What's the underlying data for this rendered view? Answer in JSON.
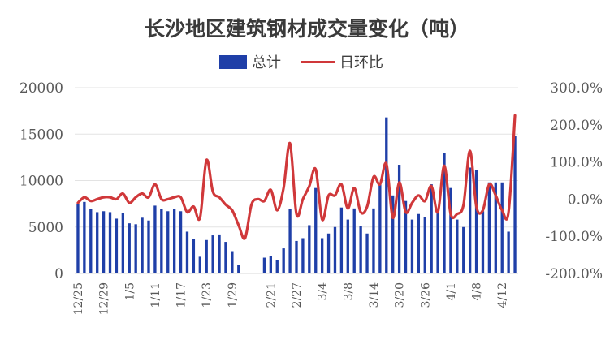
{
  "chart_data": {
    "type": "bar+line",
    "title": "长沙地区建筑钢材成交量变化（吨）",
    "legend": {
      "placement": "top-center",
      "items": [
        "总计",
        "日环比"
      ]
    },
    "colors": {
      "bar": "#1F3FA8",
      "line": "#D0383A",
      "line_highlight": "#E89A2C"
    },
    "y_left": {
      "ylim": [
        0,
        20000
      ],
      "ticks": [
        "0",
        "5000",
        "10000",
        "15000",
        "20000"
      ]
    },
    "y_right": {
      "ylim": [
        -200,
        300
      ],
      "unit": "%",
      "ticks": [
        "-200.0%",
        "-100.0%",
        "0.0%",
        "100.0%",
        "200.0%",
        "300.0%"
      ]
    },
    "x_tick_labels": [
      "12/25",
      "12/29",
      "1/5",
      "1/11",
      "1/17",
      "1/23",
      "1/29",
      "2/21",
      "2/27",
      "3/4",
      "3/8",
      "3/14",
      "3/20",
      "3/26",
      "4/1",
      "4/8",
      "4/12"
    ],
    "grid": "horizontal",
    "series": [
      {
        "name": "总计",
        "type": "bar",
        "axis": "left",
        "values": [
          7500,
          7700,
          6900,
          6600,
          6700,
          6600,
          5900,
          6500,
          5400,
          5300,
          6000,
          5700,
          7300,
          6900,
          6700,
          6900,
          6700,
          4500,
          3700,
          1800,
          3600,
          4100,
          4200,
          3400,
          2400,
          900,
          0,
          0,
          0,
          1700,
          1900,
          1400,
          2700,
          6900,
          3500,
          3800,
          5200,
          9200,
          3800,
          4300,
          5000,
          7100,
          5800,
          7000,
          5100,
          4300,
          7000,
          9700,
          16800,
          8400,
          11700,
          7800,
          5800,
          6400,
          6100,
          9600,
          6800,
          13000,
          9200,
          5800,
          5000,
          11400,
          11100,
          6700,
          9800,
          9800,
          9800,
          4500,
          14800
        ]
      },
      {
        "name": "日环比",
        "type": "line",
        "axis": "right",
        "values": [
          -10,
          5,
          -5,
          0,
          5,
          5,
          0,
          15,
          -10,
          5,
          15,
          5,
          40,
          0,
          0,
          5,
          5,
          -35,
          -20,
          -50,
          105,
          20,
          5,
          -15,
          -30,
          -70,
          -105,
          -15,
          0,
          -5,
          25,
          -30,
          30,
          150,
          -40,
          0,
          35,
          80,
          -55,
          10,
          10,
          40,
          -25,
          30,
          -35,
          -20,
          60,
          40,
          95,
          -50,
          45,
          -35,
          -10,
          10,
          -5,
          35,
          -35,
          90,
          -40,
          -40,
          -15,
          130,
          -20,
          -30,
          40,
          10,
          -30,
          -35,
          225
        ]
      }
    ]
  }
}
